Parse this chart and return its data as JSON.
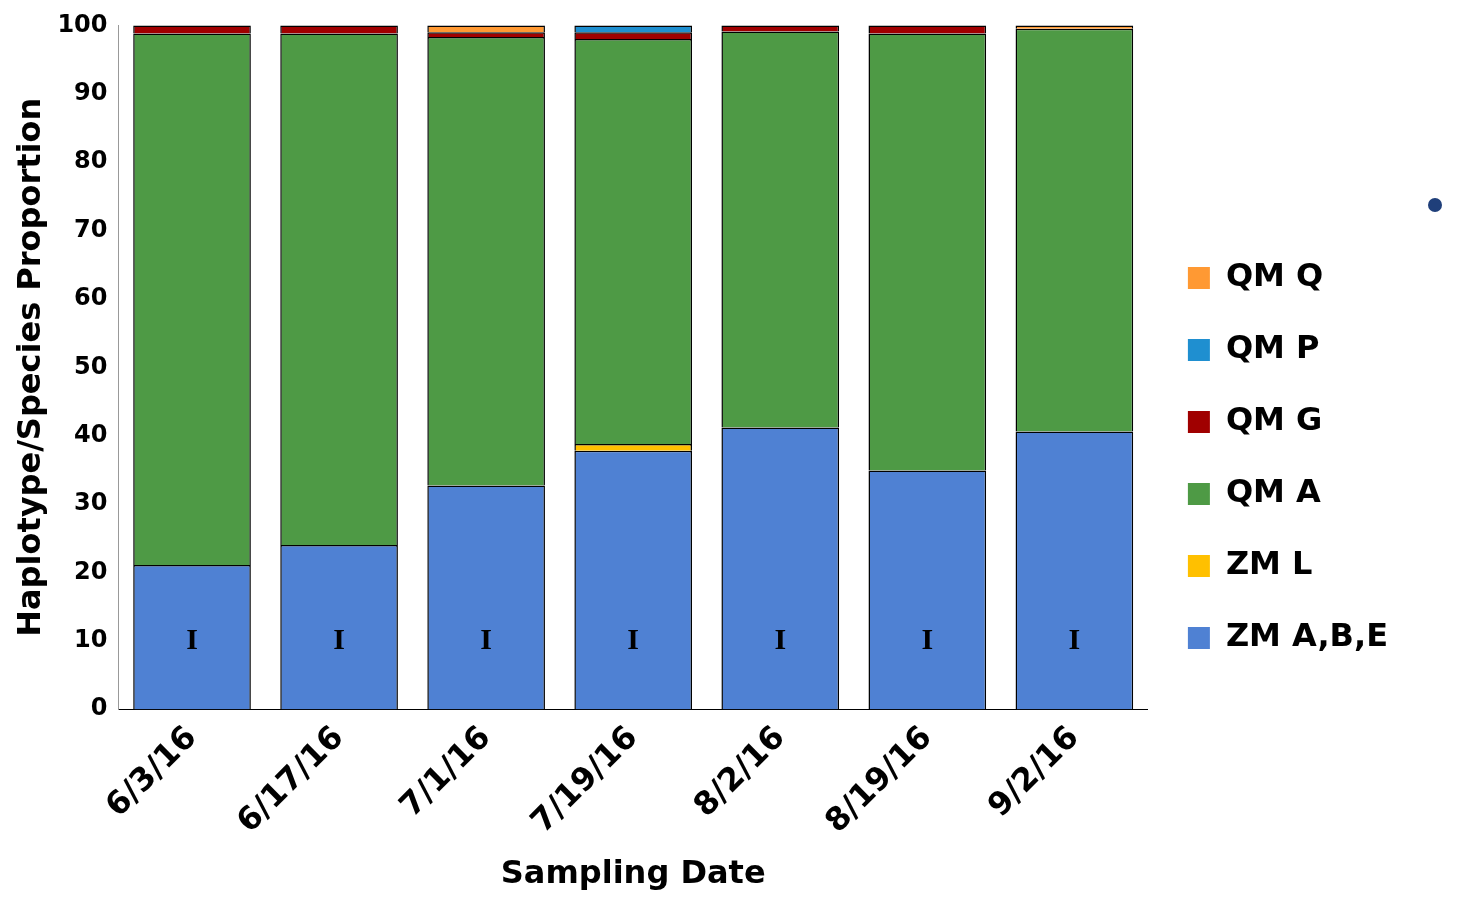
{
  "chart_data": {
    "type": "bar",
    "stacked": true,
    "xlabel": "Sampling Date",
    "ylabel": "Haplotype/Species Proportion",
    "categories": [
      "6/3/16",
      "6/17/16",
      "7/1/16",
      "7/19/16",
      "8/2/16",
      "8/19/16",
      "9/2/16"
    ],
    "series": [
      {
        "name": "ZM A,B,E",
        "color": "#4f81d3",
        "values": [
          21.1,
          24.0,
          32.7,
          37.8,
          41.2,
          34.9,
          40.6
        ]
      },
      {
        "name": "ZM L",
        "color": "#ffc000",
        "values": [
          0,
          0,
          0,
          1.0,
          0,
          0,
          0
        ]
      },
      {
        "name": "QM A",
        "color": "#4e9a45",
        "values": [
          77.7,
          74.8,
          65.6,
          59.2,
          57.9,
          63.9,
          58.9
        ]
      },
      {
        "name": "QM G",
        "color": "#a00000",
        "values": [
          1.2,
          1.2,
          0.7,
          1.0,
          0.9,
          1.2,
          0
        ]
      },
      {
        "name": "QM P",
        "color": "#1f8fd0",
        "values": [
          0,
          0,
          0,
          1.0,
          0,
          0,
          0
        ]
      },
      {
        "name": "QM Q",
        "color": "#ff9933",
        "values": [
          0,
          0,
          1.0,
          0,
          0,
          0,
          0.5
        ]
      }
    ],
    "ylim": [
      0,
      100
    ],
    "yticks": [
      0,
      10,
      20,
      30,
      40,
      50,
      60,
      70,
      80,
      90,
      100
    ],
    "grid": false,
    "legend": "right",
    "annotations": [
      "I",
      "I",
      "I",
      "I",
      "I",
      "I",
      "I"
    ]
  }
}
